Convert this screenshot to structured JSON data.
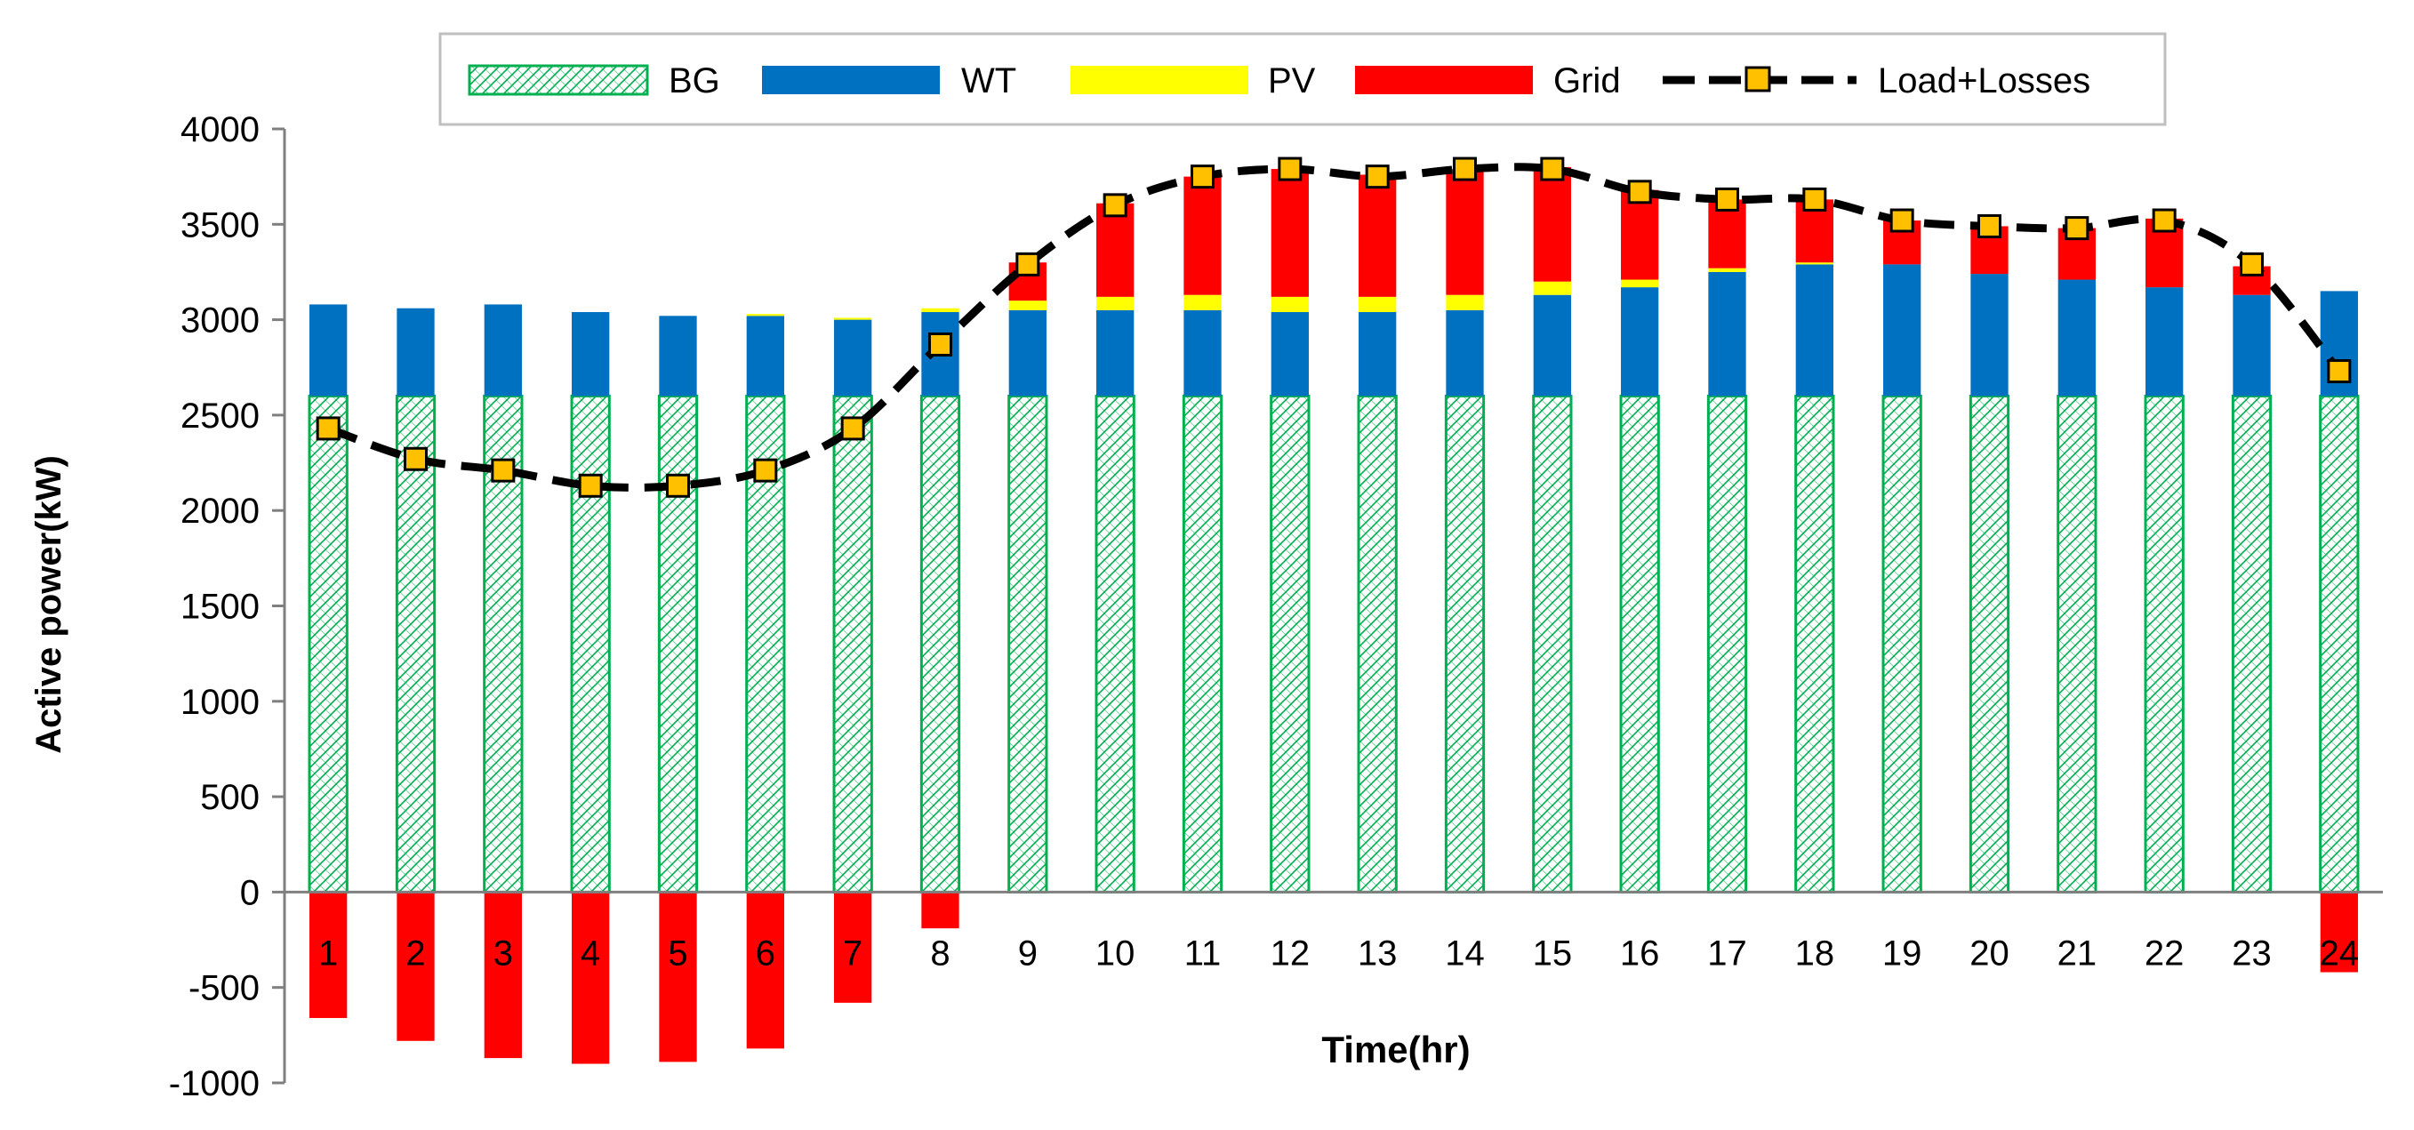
{
  "chart_data": {
    "type": "bar",
    "stacked": true,
    "title": "",
    "xlabel": "Time(hr)",
    "ylabel": "Active power(kW)",
    "ylim": [
      -1000,
      4000
    ],
    "yticks": [
      -1000,
      -500,
      0,
      500,
      1000,
      1500,
      2000,
      2500,
      3000,
      3500,
      4000
    ],
    "categories": [
      "1",
      "2",
      "3",
      "4",
      "5",
      "6",
      "7",
      "8",
      "9",
      "10",
      "11",
      "12",
      "13",
      "14",
      "15",
      "16",
      "17",
      "18",
      "19",
      "20",
      "21",
      "22",
      "23",
      "24"
    ],
    "legend_position": "top-center",
    "series": [
      {
        "name": "BG",
        "kind": "bar",
        "pattern": "hatch",
        "color": "#00b050",
        "values": [
          2600,
          2600,
          2600,
          2600,
          2600,
          2600,
          2600,
          2600,
          2600,
          2600,
          2600,
          2600,
          2600,
          2600,
          2600,
          2600,
          2600,
          2600,
          2600,
          2600,
          2600,
          2600,
          2600,
          2600
        ]
      },
      {
        "name": "WT",
        "kind": "bar",
        "color": "#0070c0",
        "values": [
          480,
          460,
          480,
          440,
          420,
          420,
          400,
          440,
          450,
          450,
          450,
          440,
          440,
          450,
          530,
          570,
          650,
          690,
          690,
          640,
          610,
          570,
          530,
          550
        ]
      },
      {
        "name": "PV",
        "kind": "bar",
        "color": "#ffff00",
        "values": [
          0,
          0,
          0,
          0,
          0,
          10,
          10,
          20,
          50,
          70,
          80,
          80,
          80,
          80,
          70,
          40,
          20,
          10,
          0,
          0,
          0,
          0,
          0,
          0
        ]
      },
      {
        "name": "Grid",
        "kind": "bar",
        "color": "#ff0000",
        "values": [
          -660,
          -780,
          -870,
          -900,
          -890,
          -820,
          -580,
          -190,
          200,
          490,
          620,
          670,
          640,
          660,
          600,
          470,
          360,
          330,
          230,
          250,
          270,
          360,
          150,
          -420
        ]
      },
      {
        "name": "Load+Losses",
        "kind": "line",
        "color": "#000000",
        "marker_color": "#ffc000",
        "values": [
          2430,
          2270,
          2210,
          2130,
          2130,
          2210,
          2430,
          2870,
          3290,
          3600,
          3750,
          3790,
          3750,
          3790,
          3790,
          3670,
          3630,
          3630,
          3520,
          3490,
          3480,
          3520,
          3290,
          2730
        ]
      }
    ]
  }
}
